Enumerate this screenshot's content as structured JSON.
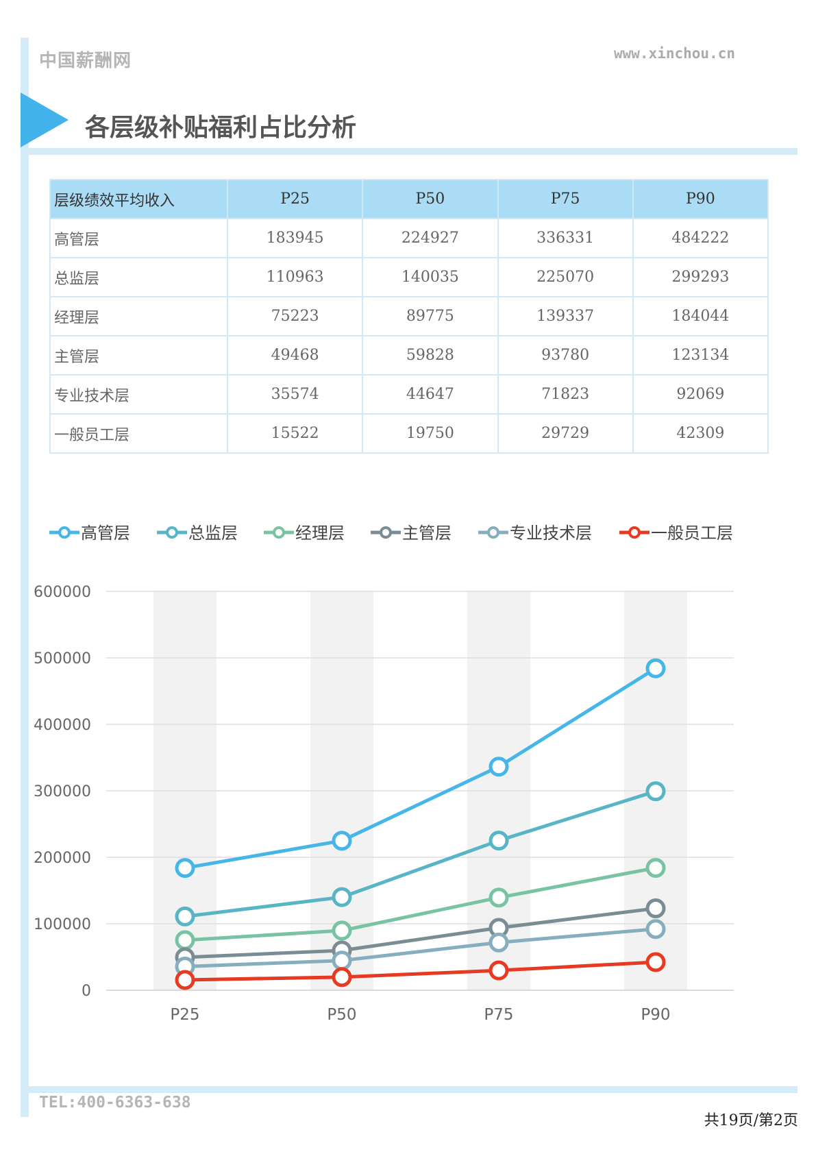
{
  "header": {
    "brand": "中国薪酬网",
    "site": "www.xinchou.cn"
  },
  "section": {
    "title": "各层级补贴福利占比分析"
  },
  "table": {
    "headers": [
      "层级绩效平均收入",
      "P25",
      "P50",
      "P75",
      "P90"
    ],
    "rows": [
      [
        "高管层",
        "183945",
        "224927",
        "336331",
        "484222"
      ],
      [
        "总监层",
        "110963",
        "140035",
        "225070",
        "299293"
      ],
      [
        "经理层",
        "75223",
        "89775",
        "139337",
        "184044"
      ],
      [
        "主管层",
        "49468",
        "59828",
        "93780",
        "123134"
      ],
      [
        "专业技术层",
        "35574",
        "44647",
        "71823",
        "92069"
      ],
      [
        "一般员工层",
        "15522",
        "19750",
        "29729",
        "42309"
      ]
    ]
  },
  "chart_data": {
    "type": "line",
    "categories": [
      "P25",
      "P50",
      "P75",
      "P90"
    ],
    "ylim": [
      0,
      600000
    ],
    "yticks": [
      "0",
      "100000",
      "200000",
      "300000",
      "400000",
      "500000",
      "600000"
    ],
    "grid": true,
    "legend_position": "top",
    "series": [
      {
        "name": "高管层",
        "color": "#46b5e8",
        "values": [
          183945,
          224927,
          336331,
          484222
        ]
      },
      {
        "name": "总监层",
        "color": "#58b5c6",
        "values": [
          110963,
          140035,
          225070,
          299293
        ]
      },
      {
        "name": "经理层",
        "color": "#78c3a3",
        "values": [
          75223,
          89775,
          139337,
          184044
        ]
      },
      {
        "name": "主管层",
        "color": "#7a8c94",
        "values": [
          49468,
          59828,
          93780,
          123134
        ]
      },
      {
        "name": "专业技术层",
        "color": "#86aebf",
        "values": [
          35574,
          44647,
          71823,
          92069
        ]
      },
      {
        "name": "一般员工层",
        "color": "#e63a22",
        "values": [
          15522,
          19750,
          29729,
          42309
        ]
      }
    ]
  },
  "footer": {
    "tel": "TEL:400-6363-638",
    "page": "共19页/第2页"
  }
}
